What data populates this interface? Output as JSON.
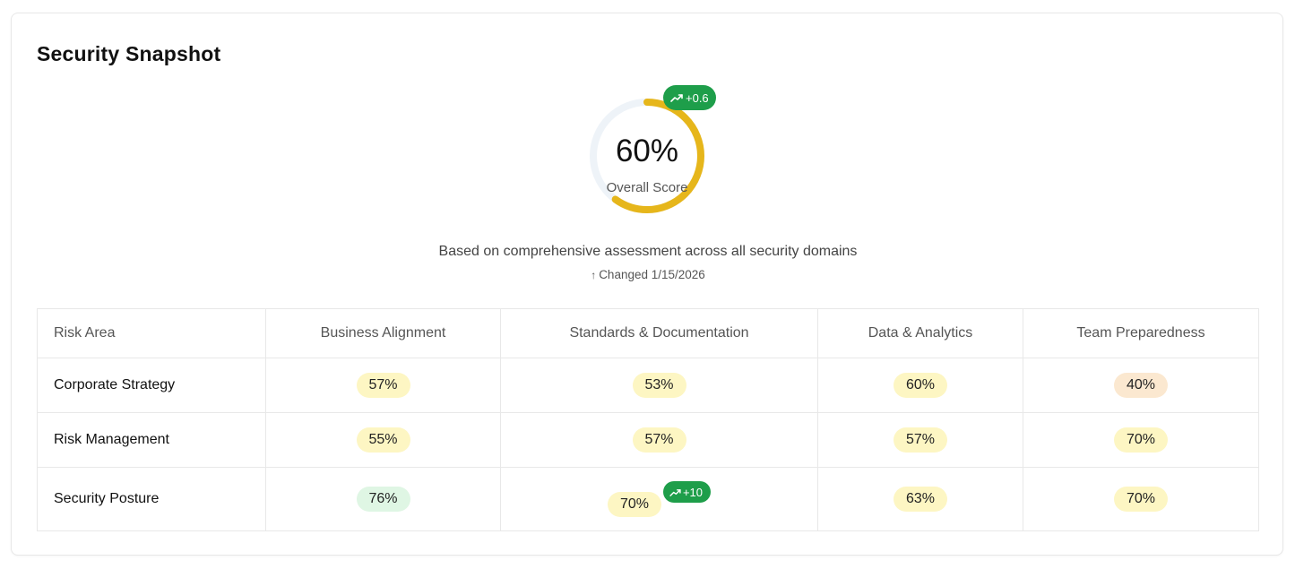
{
  "title": "Security Snapshot",
  "gauge": {
    "value_label": "60%",
    "value": 60,
    "label": "Overall Score",
    "delta": "+0.6",
    "fill_color": "#e6b61b",
    "track_color": "#eef3f8"
  },
  "subtitle": "Based on comprehensive assessment across all security domains",
  "changed": "Changed 1/15/2026",
  "table": {
    "headers": [
      "Risk Area",
      "Business Alignment",
      "Standards & Documentation",
      "Data & Analytics",
      "Team Preparedness"
    ],
    "rows": [
      {
        "area": "Corporate Strategy",
        "cells": [
          {
            "value": "57%",
            "tone": "yellow"
          },
          {
            "value": "53%",
            "tone": "yellow"
          },
          {
            "value": "60%",
            "tone": "yellow"
          },
          {
            "value": "40%",
            "tone": "orange"
          }
        ]
      },
      {
        "area": "Risk Management",
        "cells": [
          {
            "value": "55%",
            "tone": "yellow"
          },
          {
            "value": "57%",
            "tone": "yellow"
          },
          {
            "value": "57%",
            "tone": "yellow"
          },
          {
            "value": "70%",
            "tone": "yellow"
          }
        ]
      },
      {
        "area": "Security Posture",
        "cells": [
          {
            "value": "76%",
            "tone": "green"
          },
          {
            "value": "70%",
            "tone": "yellow",
            "delta": "+10"
          },
          {
            "value": "63%",
            "tone": "yellow"
          },
          {
            "value": "70%",
            "tone": "yellow"
          }
        ]
      }
    ]
  },
  "icons": {
    "trend": "trending-up-icon",
    "arrow": "arrow-up-icon"
  },
  "colors": {
    "accent_green": "#1e9e4a",
    "pill_yellow": "#fdf6c3",
    "pill_orange": "#fbe8d0",
    "pill_green": "#dff6e4"
  }
}
